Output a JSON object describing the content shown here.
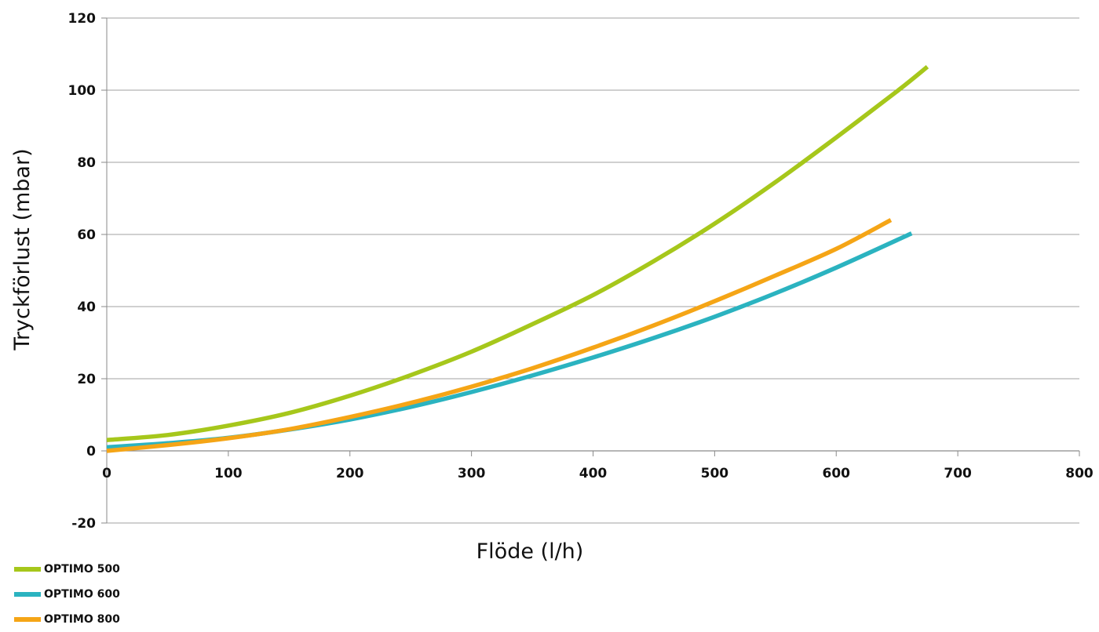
{
  "chart_data": {
    "type": "line",
    "xlabel": "Flöde (l/h)",
    "ylabel": "Tryckförlust (mbar)",
    "xlim": [
      0,
      800
    ],
    "ylim": [
      -20,
      120
    ],
    "x_ticks": [
      0,
      100,
      200,
      300,
      400,
      500,
      600,
      700,
      800
    ],
    "y_ticks": [
      -20,
      0,
      20,
      40,
      60,
      80,
      100,
      120
    ],
    "grid": "horizontal",
    "legend_position": "bottom-left",
    "series": [
      {
        "name": "OPTIMO 500",
        "color": "#a6c71b",
        "x": [
          0,
          50,
          100,
          150,
          200,
          250,
          300,
          350,
          400,
          450,
          500,
          550,
          600,
          650,
          675
        ],
        "y": [
          3,
          4.4,
          7,
          10.5,
          15.3,
          21,
          27.5,
          35.1,
          43.2,
          52.6,
          63,
          74.5,
          86.9,
          99.7,
          106.5
        ]
      },
      {
        "name": "OPTIMO 600",
        "color": "#2bb3c0",
        "x": [
          0,
          50,
          100,
          150,
          200,
          250,
          300,
          350,
          400,
          450,
          500,
          550,
          600,
          662
        ],
        "y": [
          1,
          2.1,
          3.6,
          5.9,
          8.7,
          12.2,
          16.3,
          20.9,
          25.9,
          31.3,
          37.2,
          43.7,
          50.8,
          60.3
        ]
      },
      {
        "name": "OPTIMO 800",
        "color": "#f5a516",
        "x": [
          0,
          50,
          100,
          150,
          200,
          250,
          300,
          350,
          400,
          450,
          500,
          550,
          600,
          645
        ],
        "y": [
          0,
          1.6,
          3.5,
          6,
          9.4,
          13.3,
          17.8,
          22.9,
          28.6,
          34.8,
          41.5,
          48.6,
          56,
          64
        ]
      }
    ]
  }
}
